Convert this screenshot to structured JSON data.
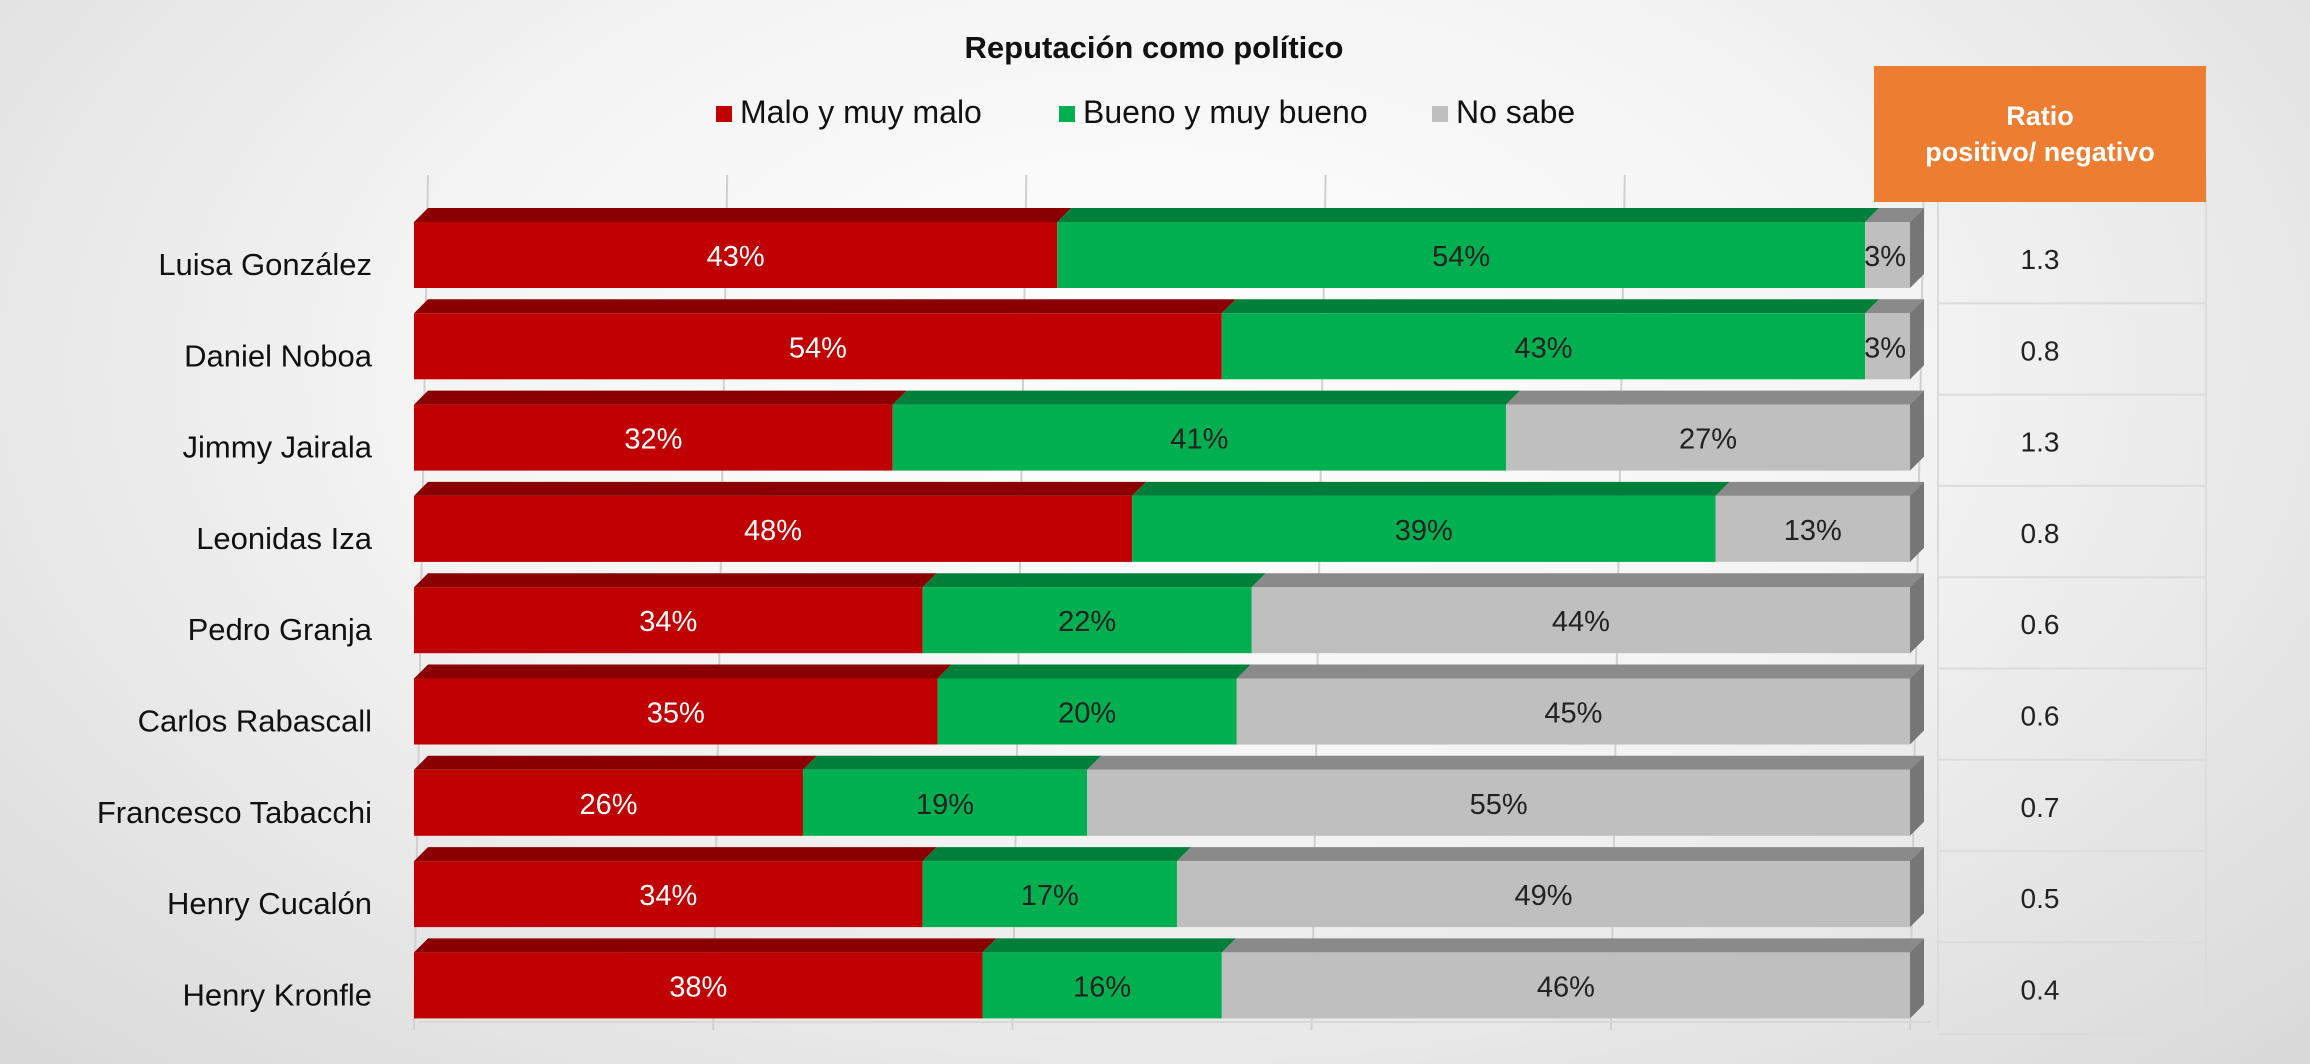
{
  "chart_data": {
    "type": "bar",
    "orientation": "horizontal",
    "stacked": true,
    "percent_stacked": true,
    "title": "Reputación como político",
    "legend_position": "top",
    "categories": [
      "Luisa González",
      "Daniel Noboa",
      "Jimmy Jairala",
      "Leonidas Iza",
      "Pedro Granja",
      "Carlos Rabascall",
      "Francesco Tabacchi",
      "Henry Cucalón",
      "Henry Kronfle"
    ],
    "series": [
      {
        "name": "Malo y muy malo",
        "color": "#c00000",
        "values": [
          43,
          54,
          32,
          48,
          34,
          35,
          26,
          34,
          38
        ]
      },
      {
        "name": "Bueno y muy bueno",
        "color": "#00b050",
        "values": [
          54,
          43,
          41,
          39,
          22,
          20,
          19,
          17,
          16
        ]
      },
      {
        "name": "No sabe",
        "color": "#bfbfbf",
        "values": [
          3,
          3,
          27,
          13,
          44,
          45,
          55,
          49,
          46
        ]
      }
    ],
    "value_labels": [
      [
        "43%",
        "54%",
        "3%"
      ],
      [
        "54%",
        "43%",
        "3%"
      ],
      [
        "32%",
        "41%",
        "27%"
      ],
      [
        "48%",
        "39%",
        "13%"
      ],
      [
        "34%",
        "22%",
        "44%"
      ],
      [
        "35%",
        "20%",
        "45%"
      ],
      [
        "26%",
        "19%",
        "55%"
      ],
      [
        "34%",
        "17%",
        "49%"
      ],
      [
        "38%",
        "16%",
        "46%"
      ]
    ],
    "xlim": [
      0,
      100
    ],
    "grid": true,
    "ratio_table": {
      "header_line1": "Ratio",
      "header_line2": "positivo/ negativo",
      "values": [
        "1.3",
        "0.8",
        "1.3",
        "0.8",
        "0.6",
        "0.6",
        "0.7",
        "0.5",
        "0.4"
      ]
    }
  }
}
